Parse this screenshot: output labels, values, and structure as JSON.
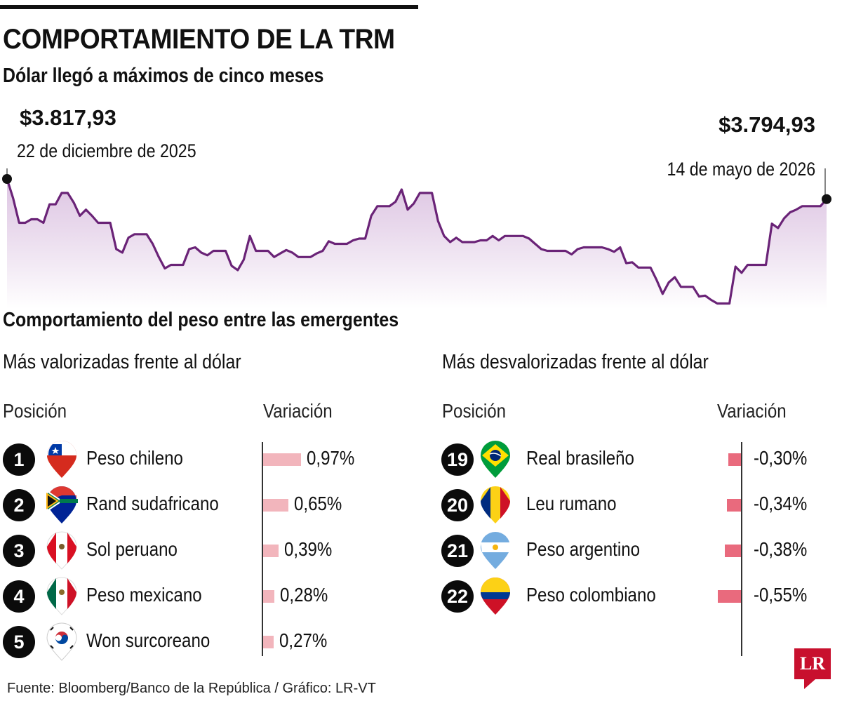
{
  "header": {
    "title": "COMPORTAMIENTO DE LA TRM",
    "subtitle": "Dólar llegó a máximos de cinco meses"
  },
  "chart_data": [
    {
      "type": "area",
      "title": "COMPORTAMIENTO DE LA TRM",
      "subtitle": "Dólar llegó a máximos de cinco meses",
      "annotations": [
        {
          "value": "$3.817,93",
          "label": "22 de diciembre de 2025"
        },
        {
          "value": "$3.794,93",
          "label": "14 de mayo de 2026"
        }
      ],
      "values": [
        3818,
        3796,
        3768,
        3768,
        3772,
        3772,
        3768,
        3789,
        3789,
        3802,
        3802,
        3791,
        3776,
        3783,
        3776,
        3768,
        3768,
        3768,
        3738,
        3734,
        3751,
        3755,
        3755,
        3755,
        3744,
        3729,
        3716,
        3720,
        3720,
        3720,
        3738,
        3740,
        3734,
        3731,
        3736,
        3736,
        3736,
        3719,
        3714,
        3726,
        3753,
        3736,
        3736,
        3736,
        3729,
        3733,
        3737,
        3734,
        3729,
        3729,
        3729,
        3733,
        3736,
        3747,
        3744,
        3744,
        3744,
        3748,
        3750,
        3750,
        3776,
        3787,
        3787,
        3787,
        3792,
        3806,
        3783,
        3790,
        3802,
        3802,
        3802,
        3770,
        3753,
        3746,
        3751,
        3746,
        3746,
        3746,
        3748,
        3748,
        3753,
        3748,
        3753,
        3753,
        3753,
        3753,
        3750,
        3744,
        3738,
        3736,
        3736,
        3736,
        3736,
        3732,
        3738,
        3740,
        3740,
        3740,
        3740,
        3738,
        3735,
        3740,
        3722,
        3723,
        3717,
        3717,
        3717,
        3703,
        3687,
        3700,
        3706,
        3695,
        3695,
        3695,
        3684,
        3685,
        3680,
        3676,
        3676,
        3676,
        3718,
        3711,
        3720,
        3720,
        3720,
        3720,
        3767,
        3762,
        3773,
        3780,
        3783,
        3787,
        3787,
        3787,
        3787,
        3795
      ]
    },
    {
      "type": "bar",
      "title": "Más valorizadas frente al dólar",
      "column_headers": [
        "Posición",
        "Variación"
      ],
      "rows": [
        {
          "rank": "1",
          "currency": "Peso chileno",
          "value": 0.97,
          "label": "0,97%",
          "flag": "chile-flag-icon"
        },
        {
          "rank": "2",
          "currency": "Rand sudafricano",
          "value": 0.65,
          "label": "0,65%",
          "flag": "south-africa-flag-icon"
        },
        {
          "rank": "3",
          "currency": "Sol peruano",
          "value": 0.39,
          "label": "0,39%",
          "flag": "peru-flag-icon"
        },
        {
          "rank": "4",
          "currency": "Peso mexicano",
          "value": 0.28,
          "label": "0,28%",
          "flag": "mexico-flag-icon"
        },
        {
          "rank": "5",
          "currency": "Won surcoreano",
          "value": 0.27,
          "label": "0,27%",
          "flag": "south-korea-flag-icon"
        }
      ]
    },
    {
      "type": "bar",
      "title": "Más desvalorizadas frente al dólar",
      "column_headers": [
        "Posición",
        "Variación"
      ],
      "rows": [
        {
          "rank": "19",
          "currency": "Real brasileño",
          "value": -0.3,
          "label": "-0,30%",
          "flag": "brazil-flag-icon"
        },
        {
          "rank": "20",
          "currency": "Leu rumano",
          "value": -0.34,
          "label": "-0,34%",
          "flag": "romania-flag-icon"
        },
        {
          "rank": "21",
          "currency": "Peso argentino",
          "value": -0.38,
          "label": "-0,38%",
          "flag": "argentina-flag-icon"
        },
        {
          "rank": "22",
          "currency": "Peso colombiano",
          "value": -0.55,
          "label": "-0,55%",
          "flag": "colombia-flag-icon"
        }
      ]
    }
  ],
  "section_title": "Comportamiento del peso entre las emergentes",
  "footer": "Fuente: Bloomberg/Banco de la República  / Gráfico: LR-VT",
  "logo_text": "LR",
  "colors": {
    "line": "#6a2377",
    "area_top": "#d9bedf",
    "positive_bar": "#f2b5bc",
    "negative_bar": "#e96a7d"
  }
}
